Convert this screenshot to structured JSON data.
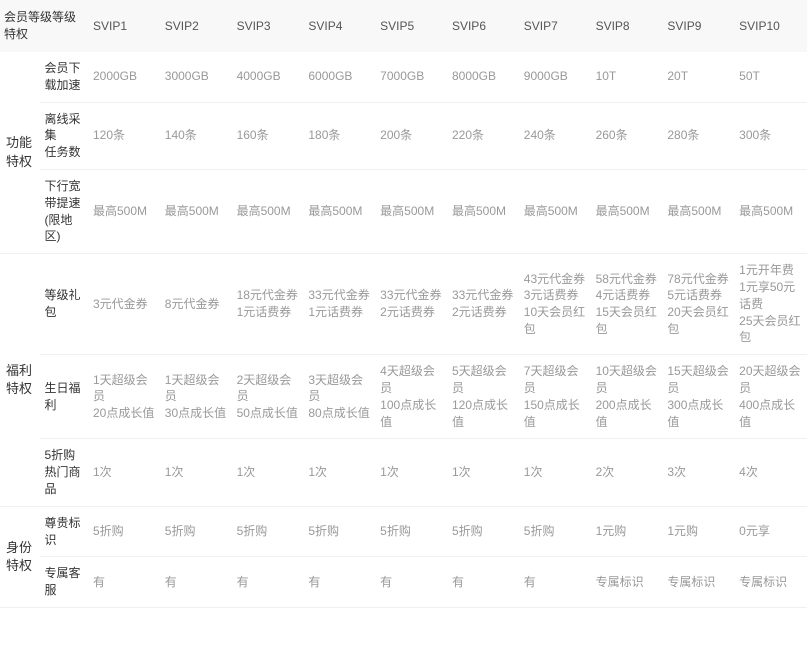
{
  "header": {
    "corner": "会员等级等级特权",
    "tiers": [
      "SVIP1",
      "SVIP2",
      "SVIP3",
      "SVIP4",
      "SVIP5",
      "SVIP6",
      "SVIP7",
      "SVIP8",
      "SVIP9",
      "SVIP10"
    ]
  },
  "categories": [
    {
      "name": "功能特权",
      "rows": [
        {
          "feature": "会员下载加速",
          "values": [
            "2000GB",
            "3000GB",
            "4000GB",
            "6000GB",
            "7000GB",
            "8000GB",
            "9000GB",
            "10T",
            "20T",
            "50T"
          ]
        },
        {
          "feature": "离线采集\n任务数",
          "values": [
            "120条",
            "140条",
            "160条",
            "180条",
            "200条",
            "220条",
            "240条",
            "260条",
            "280条",
            "300条"
          ]
        },
        {
          "feature": "下行宽带提速(限地区)",
          "values": [
            "最高500M",
            "最高500M",
            "最高500M",
            "最高500M",
            "最高500M",
            "最高500M",
            "最高500M",
            "最高500M",
            "最高500M",
            "最高500M"
          ]
        }
      ]
    },
    {
      "name": "福利特权",
      "rows": [
        {
          "feature": "等级礼包",
          "values": [
            "3元代金券",
            "8元代金券",
            "18元代金券\n1元话费券",
            "33元代金券\n1元话费券",
            "33元代金券\n2元话费券",
            "33元代金券\n2元话费券",
            "43元代金券\n3元话费券\n10天会员红包",
            "58元代金券\n4元话费券\n15天会员红包",
            "78元代金券\n5元话费券\n20天会员红包",
            "1元开年费\n1元享50元话费\n25天会员红包"
          ]
        },
        {
          "feature": "生日福利",
          "values": [
            "1天超级会员\n20点成长值",
            "1天超级会员\n30点成长值",
            "2天超级会员\n50点成长值",
            "3天超级会员\n80点成长值",
            "4天超级会员\n100点成长值",
            "5天超级会员\n120点成长值",
            "7天超级会员\n150点成长值",
            "10天超级会员\n200点成长值",
            "15天超级会员\n300点成长值",
            "20天超级会员\n400点成长值"
          ]
        },
        {
          "feature": "5折购热门商品",
          "values": [
            "1次",
            "1次",
            "1次",
            "1次",
            "1次",
            "1次",
            "1次",
            "2次",
            "3次",
            "4次"
          ]
        }
      ]
    },
    {
      "name": "身份特权",
      "rows": [
        {
          "feature": "尊贵标识",
          "values": [
            "5折购",
            "5折购",
            "5折购",
            "5折购",
            "5折购",
            "5折购",
            "5折购",
            "1元购",
            "1元购",
            "0元享"
          ]
        },
        {
          "feature": "专属客服",
          "values": [
            "有",
            "有",
            "有",
            "有",
            "有",
            "有",
            "有",
            "专属标识",
            "专属标识",
            "专属标识"
          ]
        }
      ]
    }
  ],
  "style": {
    "background_color": "#ffffff",
    "header_background": "#f8f8f8",
    "text_color_primary": "#333333",
    "text_color_value": "#999999",
    "border_color": "#f0f0f0",
    "font_size_header": 12,
    "font_size_category": 13,
    "font_size_value": 12,
    "col_widths": {
      "category": 40,
      "feature": 48,
      "tier": 71
    }
  }
}
